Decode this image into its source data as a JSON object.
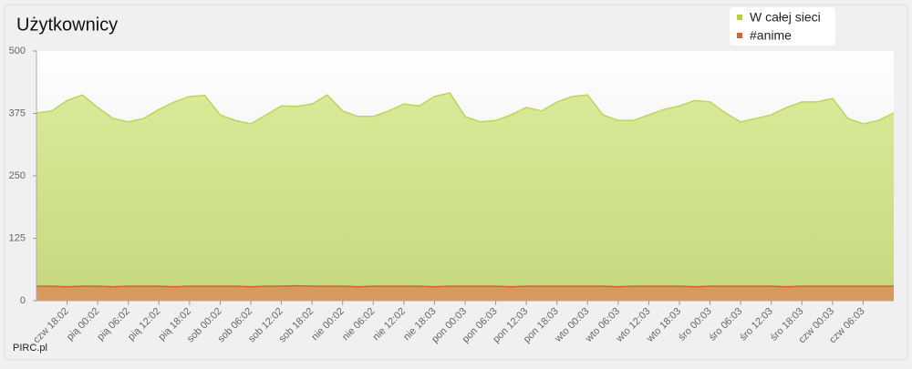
{
  "chart_data": {
    "type": "area",
    "title": "Użytkownicy",
    "credit": "PIRC.pl",
    "categories": [
      null,
      null,
      "czw 18:02",
      null,
      "pią 00:02",
      null,
      "pią 06:02",
      null,
      "pią 12:02",
      null,
      "pią 18:02",
      null,
      "sob 00:02",
      null,
      "sob 06:02",
      null,
      "sob 12:02",
      null,
      "sob 18:02",
      null,
      "nie 00:02",
      null,
      "nie 06:02",
      null,
      "nie 12:02",
      null,
      "nie 18:03",
      null,
      "pon 00:03",
      null,
      "pon 06:03",
      null,
      "pon 12:03",
      null,
      "pon 18:03",
      null,
      "wto 00:03",
      null,
      "wto 06:03",
      null,
      "wto 12:03",
      null,
      "wto 18:03",
      null,
      "śro 00:03",
      null,
      "śro 06:03",
      null,
      "śro 12:03",
      null,
      "śro 18:03",
      null,
      "czw 00:03",
      null,
      "czw 06:03",
      null,
      null
    ],
    "series": [
      {
        "name": "W całej sieci",
        "color": "#b5d334",
        "values": [
          376,
          380,
          401,
          412,
          387,
          365,
          358,
          365,
          383,
          398,
          409,
          411,
          372,
          361,
          354,
          372,
          390,
          389,
          394,
          412,
          380,
          369,
          369,
          380,
          394,
          390,
          409,
          416,
          369,
          358,
          361,
          372,
          387,
          380,
          398,
          409,
          412,
          372,
          361,
          361,
          372,
          383,
          390,
          401,
          398,
          376,
          358,
          365,
          372,
          387,
          398,
          398,
          405,
          365,
          354,
          361,
          376
        ]
      },
      {
        "name": "#anime",
        "color": "#c8663a",
        "values": [
          29,
          29,
          28,
          29,
          29,
          28,
          29,
          29,
          29,
          28,
          29,
          29,
          29,
          29,
          28,
          29,
          29,
          30,
          29,
          29,
          29,
          28,
          29,
          29,
          29,
          29,
          28,
          29,
          29,
          29,
          29,
          28,
          29,
          29,
          29,
          29,
          29,
          29,
          28,
          29,
          29,
          29,
          29,
          28,
          29,
          29,
          29,
          29,
          29,
          28,
          29,
          29,
          29,
          29,
          29,
          29,
          29
        ]
      }
    ],
    "ylim": [
      0,
      500
    ],
    "yticks": [
      0,
      125,
      250,
      375,
      500
    ],
    "grid": false,
    "legend": "top-right"
  }
}
